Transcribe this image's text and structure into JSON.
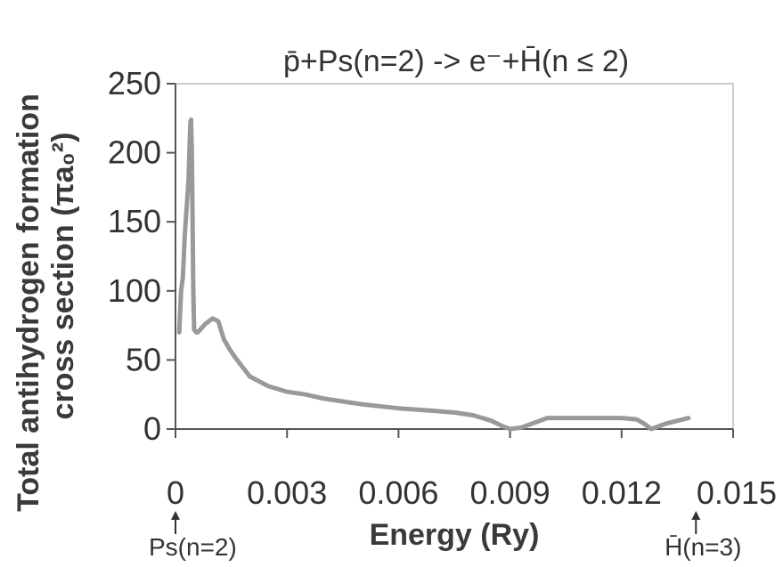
{
  "chart_data": {
    "type": "line",
    "title": "p̄+Ps(n=2) -> e⁻+H̄(n ≤ 2)",
    "xlabel": "Energy (Ry)",
    "ylabel_line1": "Total antihydrogen formation",
    "ylabel_line2": "cross section (πa₀²)",
    "xlim": [
      0,
      0.015
    ],
    "ylim": [
      0,
      250
    ],
    "x_ticks": [
      0,
      0.003,
      0.006,
      0.009,
      0.012,
      0.015
    ],
    "x_tick_labels": [
      "0",
      "0.003",
      "0.006",
      "0.009",
      "0.012",
      "0.015"
    ],
    "y_ticks": [
      0,
      50,
      100,
      150,
      200,
      250
    ],
    "y_tick_labels": [
      "0",
      "50",
      "100",
      "150",
      "200",
      "250"
    ],
    "grid": false,
    "line_color": "#999999",
    "series": [
      {
        "x": [
          0.0001,
          0.00015,
          0.0002,
          0.00025,
          0.0003,
          0.00035,
          0.0004,
          0.00042,
          0.00044,
          0.00046,
          0.00048,
          0.0005,
          0.00053,
          0.00056,
          0.0006,
          0.0008,
          0.001,
          0.00115,
          0.0013,
          0.00145,
          0.0016,
          0.002,
          0.0025,
          0.003,
          0.0035,
          0.004,
          0.005,
          0.006,
          0.0065,
          0.007,
          0.0075,
          0.008,
          0.0085,
          0.0088,
          0.009,
          0.0093,
          0.0096,
          0.01,
          0.011,
          0.012,
          0.0124,
          0.0126,
          0.0128,
          0.013,
          0.0132,
          0.0135,
          0.0138
        ],
        "y": [
          70,
          100,
          110,
          140,
          160,
          180,
          222,
          224,
          200,
          150,
          100,
          72,
          71,
          70,
          70,
          76,
          80,
          78,
          65,
          58,
          52,
          38,
          31,
          27,
          25,
          22,
          18,
          15,
          14,
          13,
          12,
          10,
          6,
          2,
          0,
          1,
          4,
          8,
          8,
          8,
          7,
          4,
          0,
          2,
          4,
          6,
          8
        ]
      }
    ],
    "x_markers": [
      {
        "x": 0,
        "label": "Ps(n=2)"
      },
      {
        "x": 0.014,
        "label": "H̄(n=3)"
      }
    ]
  }
}
